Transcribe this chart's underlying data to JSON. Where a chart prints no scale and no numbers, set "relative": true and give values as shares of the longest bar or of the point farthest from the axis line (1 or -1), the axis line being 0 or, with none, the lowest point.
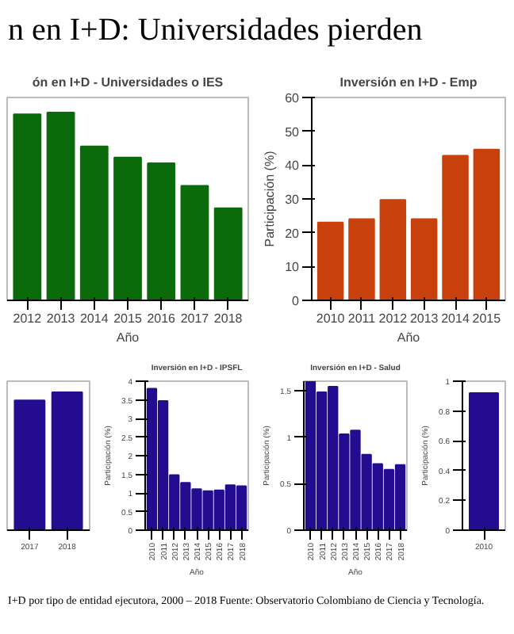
{
  "chart_data": [
    {
      "type": "other",
      "title": "n en I+D: Universidades pierden"
    },
    {
      "type": "bar",
      "title": "ón en I+D - Universidades o IES",
      "xlabel": "Año",
      "categories": [
        "2012",
        "2013",
        "2014",
        "2015",
        "2016",
        "2017",
        "2018"
      ],
      "values": [
        0.99,
        1,
        0.82,
        0.76,
        0.73,
        0.61,
        0.49
      ],
      "color": "#0b6b0b",
      "relative": true
    },
    {
      "type": "bar",
      "title": "Inversión en I+D - Emp",
      "xlabel": "Año",
      "ylabel": "Participación (%)",
      "categories": [
        "2010",
        "2011",
        "2012",
        "2013",
        "2014",
        "2015"
      ],
      "values": [
        23,
        24,
        29.7,
        24,
        42.8,
        44.6
      ],
      "color": "#c8400c",
      "ylim": [
        0,
        60
      ],
      "yticks": [
        0,
        10,
        20,
        30,
        40,
        50,
        60
      ]
    },
    {
      "type": "bar",
      "categories": [
        "2017",
        "2018"
      ],
      "values": [
        0.94,
        1
      ],
      "color": "#230c8f",
      "relative": true
    },
    {
      "type": "bar",
      "title": "Inversión en I+D - IPSFL",
      "xlabel": "Año",
      "ylabel": "Participación (%)",
      "categories": [
        "2010",
        "2011",
        "2012",
        "2013",
        "2014",
        "2015",
        "2016",
        "2017",
        "2018"
      ],
      "values": [
        3.8,
        3.47,
        1.48,
        1.27,
        1.1,
        1.05,
        1.07,
        1.21,
        1.18
      ],
      "color": "#230c8f",
      "ylim": [
        0,
        4
      ],
      "yticks": [
        0,
        0.5,
        1,
        1.5,
        2,
        2.5,
        3,
        3.5,
        4
      ]
    },
    {
      "type": "bar",
      "title": "Inversión en I+D - Salud",
      "xlabel": "Año",
      "ylabel": "Participación (%)",
      "categories": [
        "2010",
        "2011",
        "2012",
        "2013",
        "2014",
        "2015",
        "2016",
        "2017",
        "2018"
      ],
      "values": [
        1.6,
        1.48,
        1.54,
        1.03,
        1.07,
        0.81,
        0.71,
        0.65,
        0.7
      ],
      "color": "#230c8f",
      "ylim": [
        0,
        1.6
      ],
      "yticks": [
        0,
        0.5,
        1,
        1.5
      ]
    },
    {
      "type": "bar",
      "ylabel": "Participación (%)",
      "categories": [
        "2010"
      ],
      "values": [
        0.92
      ],
      "color": "#230c8f",
      "ylim": [
        0,
        1
      ],
      "yticks": [
        0,
        0.2,
        0.4,
        0.6,
        0.8,
        1
      ]
    },
    {
      "type": "other",
      "annotations": [
        "I+D por tipo de entidad ejecutora, 2000 – 2018 Fuente: Observatorio Colombiano de Ciencia y Tecnología."
      ]
    }
  ]
}
